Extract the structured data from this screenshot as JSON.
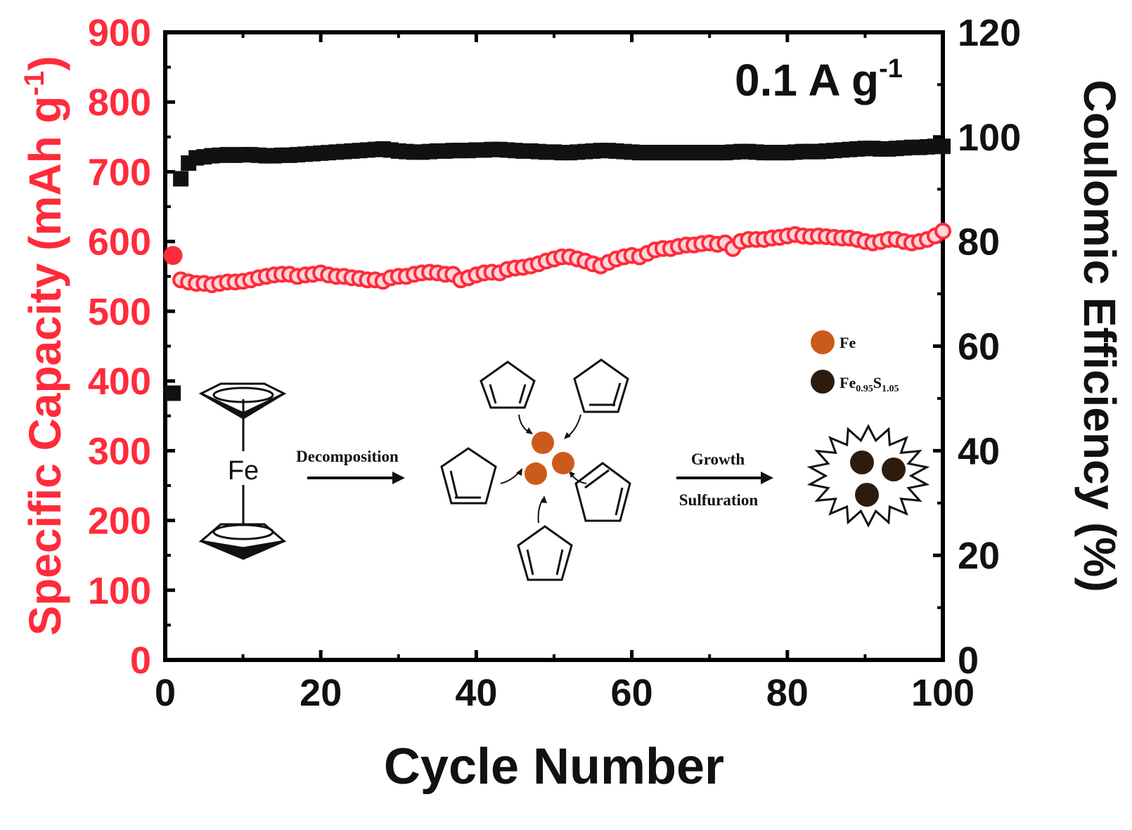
{
  "chart_data": {
    "type": "scatter",
    "title": "",
    "condition": {
      "base": "0.1 A g",
      "sup": "-1"
    },
    "xlabel": "Cycle Number",
    "ylabel_left": {
      "base": "Specific Capacity (mAh g",
      "sup": "-1",
      "tail": ")"
    },
    "ylabel_right": "Coulomic Efficiency (%)",
    "xlim": [
      0,
      100
    ],
    "ylim_left": [
      0,
      900
    ],
    "ylim_right": [
      0,
      120
    ],
    "x_ticks": [
      "0",
      "20",
      "40",
      "60",
      "80",
      "100"
    ],
    "y_left_ticks": [
      "0",
      "100",
      "200",
      "300",
      "400",
      "500",
      "600",
      "700",
      "800",
      "900"
    ],
    "y_right_ticks": [
      "0",
      "20",
      "40",
      "60",
      "80",
      "100",
      "120"
    ],
    "colors": {
      "capacity": "#ff2b3a",
      "efficiency": "#111111"
    },
    "series": [
      {
        "axis": "left",
        "x": [
          1,
          2,
          3,
          4,
          5,
          6,
          7,
          8,
          9,
          10,
          11,
          12,
          13,
          14,
          15,
          16,
          17,
          18,
          19,
          20,
          21,
          22,
          23,
          24,
          25,
          26,
          27,
          28,
          29,
          30,
          31,
          32,
          33,
          34,
          35,
          36,
          37,
          38,
          39,
          40,
          41,
          42,
          43,
          44,
          45,
          46,
          47,
          48,
          49,
          50,
          51,
          52,
          53,
          54,
          55,
          56,
          57,
          58,
          59,
          60,
          61,
          62,
          63,
          64,
          65,
          66,
          67,
          68,
          69,
          70,
          71,
          72,
          73,
          74,
          75,
          76,
          77,
          78,
          79,
          80,
          81,
          82,
          83,
          84,
          85,
          86,
          87,
          88,
          89,
          90,
          91,
          92,
          93,
          94,
          95,
          96,
          97,
          98,
          99,
          100
        ],
        "values": [
          580,
          545,
          542,
          540,
          540,
          538,
          540,
          542,
          542,
          543,
          545,
          548,
          550,
          552,
          553,
          553,
          550,
          552,
          553,
          555,
          552,
          550,
          550,
          548,
          547,
          545,
          545,
          543,
          548,
          550,
          550,
          553,
          555,
          556,
          555,
          553,
          553,
          545,
          548,
          552,
          555,
          556,
          555,
          560,
          562,
          563,
          565,
          568,
          572,
          575,
          578,
          578,
          575,
          572,
          568,
          565,
          570,
          575,
          578,
          580,
          578,
          583,
          588,
          590,
          590,
          593,
          595,
          595,
          597,
          598,
          596,
          598,
          590,
          600,
          603,
          603,
          603,
          605,
          606,
          608,
          610,
          608,
          607,
          608,
          607,
          606,
          605,
          605,
          603,
          600,
          598,
          600,
          603,
          603,
          600,
          598,
          600,
          603,
          608,
          615
        ]
      },
      {
        "axis": "right",
        "x": [
          1,
          2,
          3,
          4,
          5,
          6,
          7,
          8,
          9,
          10,
          11,
          12,
          13,
          14,
          15,
          16,
          17,
          18,
          19,
          20,
          21,
          22,
          23,
          24,
          25,
          26,
          27,
          28,
          29,
          30,
          31,
          32,
          33,
          34,
          35,
          36,
          37,
          38,
          39,
          40,
          41,
          42,
          43,
          44,
          45,
          46,
          47,
          48,
          49,
          50,
          51,
          52,
          53,
          54,
          55,
          56,
          57,
          58,
          59,
          60,
          61,
          62,
          63,
          64,
          65,
          66,
          67,
          68,
          69,
          70,
          71,
          72,
          73,
          74,
          75,
          76,
          77,
          78,
          79,
          80,
          81,
          82,
          83,
          84,
          85,
          86,
          87,
          88,
          89,
          90,
          91,
          92,
          93,
          94,
          95,
          96,
          97,
          98,
          99,
          100
        ],
        "values": [
          51,
          92,
          95,
          96,
          96.2,
          96.4,
          96.5,
          96.6,
          96.5,
          96.6,
          96.6,
          96.5,
          96.4,
          96.4,
          96.5,
          96.5,
          96.6,
          96.7,
          96.8,
          96.9,
          97,
          97.1,
          97.2,
          97.3,
          97.4,
          97.5,
          97.6,
          97.7,
          97.5,
          97.3,
          97.2,
          97.1,
          97.1,
          97.2,
          97.3,
          97.3,
          97.4,
          97.4,
          97.4,
          97.5,
          97.5,
          97.6,
          97.6,
          97.5,
          97.4,
          97.3,
          97.3,
          97.2,
          97.1,
          97.1,
          97,
          97,
          97.1,
          97.2,
          97.3,
          97.4,
          97.4,
          97.3,
          97.2,
          97.1,
          97,
          97,
          97,
          97,
          97,
          97,
          97,
          97,
          97,
          97,
          97,
          97,
          97.1,
          97.2,
          97.2,
          97.1,
          97,
          97,
          97,
          97,
          97.1,
          97.2,
          97.2,
          97.2,
          97.3,
          97.4,
          97.5,
          97.6,
          97.7,
          97.8,
          97.8,
          97.7,
          97.7,
          97.8,
          97.9,
          98,
          98,
          98.1,
          98.2,
          98.2
        ]
      }
    ],
    "inset": {
      "ferrocene_label": "Fe",
      "step1_label": "Decomposition",
      "step2_label_top": "Growth",
      "step2_label_bottom": "Sulfuration",
      "legend": [
        {
          "color": "#cc5a1d",
          "label": "Fe"
        },
        {
          "color": "#2d1b0e",
          "label_parts": [
            "Fe",
            "0.95",
            "S",
            "1.05"
          ]
        }
      ]
    }
  }
}
